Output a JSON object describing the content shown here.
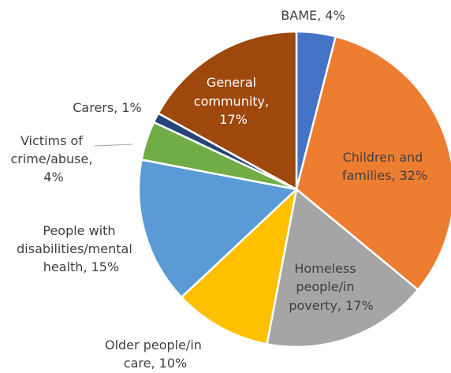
{
  "chart_data": {
    "type": "pie",
    "title": "",
    "slices": [
      {
        "name": "BAME",
        "value": 4,
        "label": "BAME, 4%",
        "color": "#4472C4"
      },
      {
        "name": "Children and families",
        "value": 32,
        "label": "Children and families, 32%",
        "color": "#ED7D31"
      },
      {
        "name": "Homeless people/in poverty",
        "value": 17,
        "label": "Homeless people/in poverty, 17%",
        "color": "#A5A5A5"
      },
      {
        "name": "Older people/in care",
        "value": 10,
        "label": "Older people/in care, 10%",
        "color": "#FFC000"
      },
      {
        "name": "People with disabilities/mental health",
        "value": 15,
        "label": "People with disabilities/mental health, 15%",
        "color": "#5B9BD5"
      },
      {
        "name": "Victims of crime/abuse",
        "value": 4,
        "label": "Victims of crime/abuse, 4%",
        "color": "#70AD47"
      },
      {
        "name": "Carers",
        "value": 1,
        "label": "Carers, 1%",
        "color": "#264478"
      },
      {
        "name": "General community",
        "value": 17,
        "label": "General community, 17%",
        "color": "#9E480E"
      }
    ]
  }
}
